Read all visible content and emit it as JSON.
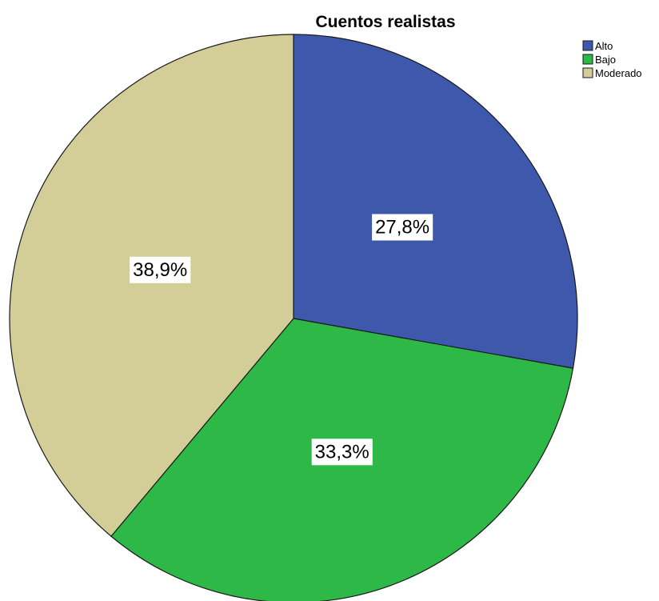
{
  "chart_data": {
    "type": "pie",
    "title": "Cuentos realistas",
    "start_angle_deg": 0,
    "direction": "clockwise",
    "legend_position": "top-right",
    "slices": [
      {
        "name": "Alto",
        "value": 27.8,
        "label": "27,8%",
        "color": "#3E58AC"
      },
      {
        "name": "Bajo",
        "value": 33.3,
        "label": "33,3%",
        "color": "#2EB848"
      },
      {
        "name": "Moderado",
        "value": 38.9,
        "label": "38,9%",
        "color": "#D3CE97"
      }
    ]
  }
}
